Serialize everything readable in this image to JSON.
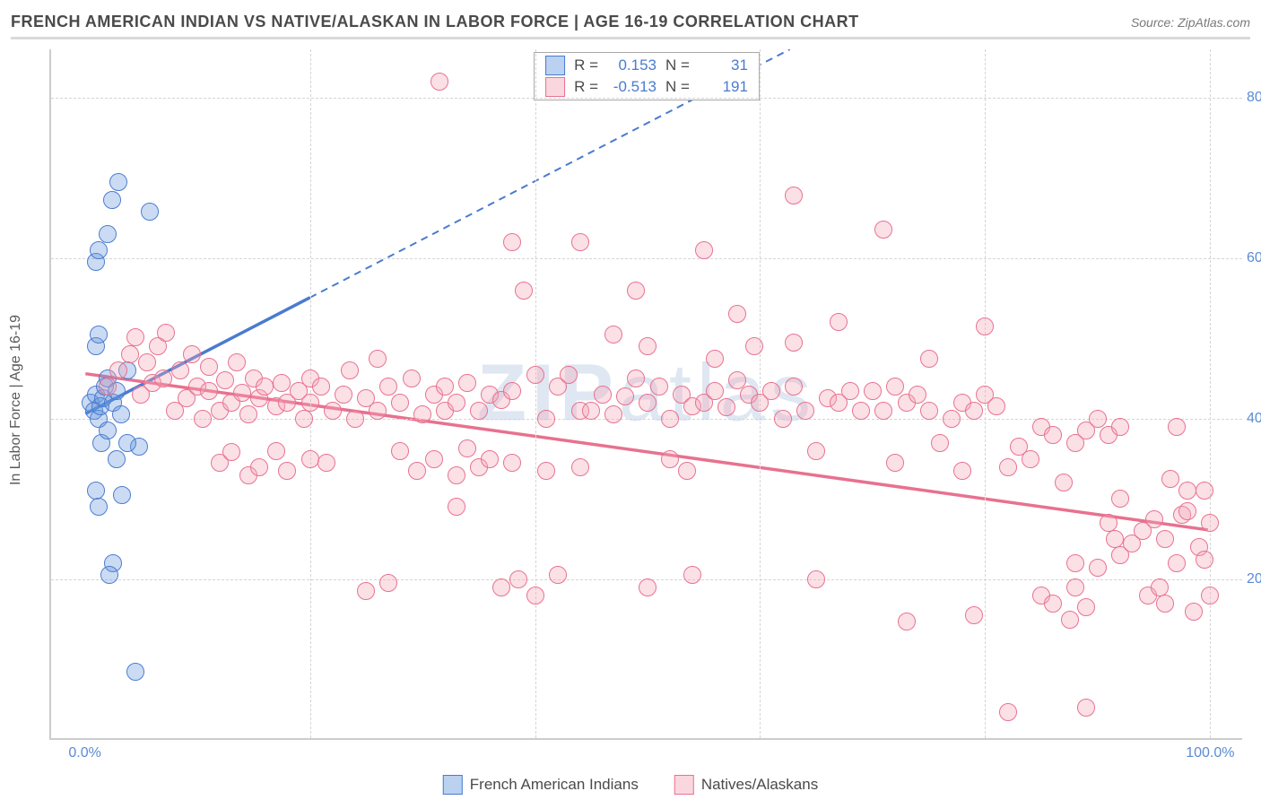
{
  "title": "FRENCH AMERICAN INDIAN VS NATIVE/ALASKAN IN LABOR FORCE | AGE 16-19 CORRELATION CHART",
  "source_label": "Source: ZipAtlas.com",
  "y_axis_title": "In Labor Force | Age 16-19",
  "watermark": {
    "bold": "ZIP",
    "rest": "atlas"
  },
  "chart": {
    "type": "scatter",
    "background_color": "#ffffff",
    "grid_color": "#d5d5d5",
    "axis_color": "#cccccc",
    "tick_label_color": "#5b8bd4",
    "tick_fontsize": 16,
    "title_fontsize": 18,
    "xlim": [
      -3,
      103
    ],
    "ylim": [
      0,
      86
    ],
    "x_ticks": [
      0,
      20,
      40,
      60,
      80,
      100
    ],
    "x_tick_labels_shown": {
      "0": "0.0%",
      "100": "100.0%"
    },
    "y_ticks": [
      20,
      40,
      60,
      80
    ],
    "y_tick_format": "{v}.0%",
    "marker_radius": 10,
    "marker_stroke_width": 1.5,
    "marker_fill_opacity": 0.35
  },
  "series": [
    {
      "id": "french_american_indians",
      "label": "French American Indians",
      "color": "#6699dd",
      "stroke": "#4a7bd0",
      "R": "0.153",
      "N": "31",
      "trend": {
        "x1": 0,
        "y1": 40.5,
        "x2": 20,
        "y2": 55,
        "x2_ext": 100,
        "y2_ext": 113,
        "solid_until_x": 20
      },
      "points": [
        [
          0.5,
          42
        ],
        [
          0.8,
          41
        ],
        [
          1.0,
          43
        ],
        [
          1.2,
          40
        ],
        [
          1.4,
          41.5
        ],
        [
          1.6,
          42.5
        ],
        [
          1.8,
          44
        ],
        [
          2,
          45
        ],
        [
          1,
          49
        ],
        [
          1.2,
          50.5
        ],
        [
          2.5,
          42
        ],
        [
          2.8,
          43.5
        ],
        [
          3.2,
          40.5
        ],
        [
          3.8,
          46
        ],
        [
          1.5,
          37
        ],
        [
          2,
          38.5
        ],
        [
          2.8,
          35
        ],
        [
          1,
          31
        ],
        [
          1.2,
          29
        ],
        [
          3.3,
          30.5
        ],
        [
          2.5,
          22
        ],
        [
          2.2,
          20.5
        ],
        [
          4.5,
          8.5
        ],
        [
          1,
          59.5
        ],
        [
          1.2,
          61
        ],
        [
          2,
          63
        ],
        [
          2.4,
          67.2
        ],
        [
          3,
          69.5
        ],
        [
          5.8,
          65.8
        ],
        [
          4.8,
          36.5
        ],
        [
          3.8,
          37
        ]
      ]
    },
    {
      "id": "natives_alaskans",
      "label": "Natives/Alaskans",
      "color": "#f4a6b8",
      "stroke": "#e8718f",
      "R": "-0.513",
      "N": "191",
      "trend": {
        "x1": 0,
        "y1": 45.5,
        "x2": 100,
        "y2": 26,
        "solid_until_x": 100
      },
      "points": [
        [
          2,
          44
        ],
        [
          3,
          46
        ],
        [
          4,
          48
        ],
        [
          4.5,
          50.2
        ],
        [
          5,
          43
        ],
        [
          5.5,
          47
        ],
        [
          6,
          44.5
        ],
        [
          6.5,
          49
        ],
        [
          7,
          45
        ],
        [
          7.2,
          50.7
        ],
        [
          8,
          41
        ],
        [
          8.5,
          46
        ],
        [
          9,
          42.5
        ],
        [
          9.5,
          48
        ],
        [
          10,
          44
        ],
        [
          10.5,
          40
        ],
        [
          11,
          43.5
        ],
        [
          12,
          41
        ],
        [
          12.5,
          44.8
        ],
        [
          13,
          42
        ],
        [
          13.5,
          47
        ],
        [
          14,
          43.2
        ],
        [
          14.5,
          40.5
        ],
        [
          15,
          45
        ],
        [
          15.5,
          42.5
        ],
        [
          16,
          44
        ],
        [
          17,
          41.5
        ],
        [
          17.5,
          44.5
        ],
        [
          18,
          42
        ],
        [
          19,
          43.5
        ],
        [
          19.5,
          40
        ],
        [
          20,
          45
        ],
        [
          12,
          34.5
        ],
        [
          13,
          35.8
        ],
        [
          14.5,
          33
        ],
        [
          15.5,
          34
        ],
        [
          17,
          36
        ],
        [
          18,
          33.5
        ],
        [
          20,
          35
        ],
        [
          21.5,
          34.5
        ],
        [
          11,
          46.5
        ],
        [
          20,
          42
        ],
        [
          21,
          44
        ],
        [
          22,
          41
        ],
        [
          23,
          43
        ],
        [
          23.5,
          46
        ],
        [
          24,
          40
        ],
        [
          25,
          42.5
        ],
        [
          26,
          41
        ],
        [
          27,
          44
        ],
        [
          26,
          47.5
        ],
        [
          28,
          42
        ],
        [
          29,
          45
        ],
        [
          30,
          40.5
        ],
        [
          31,
          43
        ],
        [
          32,
          41
        ],
        [
          28,
          36
        ],
        [
          29.5,
          33.5
        ],
        [
          31,
          35
        ],
        [
          33,
          33
        ],
        [
          34,
          36.3
        ],
        [
          35,
          34
        ],
        [
          25,
          18.5
        ],
        [
          27,
          19.5
        ],
        [
          31.5,
          82
        ],
        [
          33,
          29
        ],
        [
          32,
          44
        ],
        [
          33,
          42
        ],
        [
          34,
          44.5
        ],
        [
          35,
          41
        ],
        [
          36,
          43
        ],
        [
          37,
          42.3
        ],
        [
          38,
          43.5
        ],
        [
          38,
          62
        ],
        [
          39,
          56
        ],
        [
          40,
          45.5
        ],
        [
          41,
          40
        ],
        [
          42,
          44
        ],
        [
          43,
          45.5
        ],
        [
          44,
          41
        ],
        [
          37,
          19
        ],
        [
          38.5,
          20
        ],
        [
          40,
          18
        ],
        [
          42,
          20.5
        ],
        [
          36,
          35
        ],
        [
          38,
          34.5
        ],
        [
          41,
          33.5
        ],
        [
          44,
          34
        ],
        [
          45,
          41
        ],
        [
          46,
          43
        ],
        [
          47,
          40.5
        ],
        [
          48,
          42.8
        ],
        [
          49,
          45
        ],
        [
          47,
          50.5
        ],
        [
          49,
          56
        ],
        [
          50,
          49
        ],
        [
          44,
          62
        ],
        [
          50,
          42
        ],
        [
          51,
          44
        ],
        [
          52,
          40
        ],
        [
          53,
          43
        ],
        [
          54,
          41.5
        ],
        [
          52,
          35
        ],
        [
          53.5,
          33.5
        ],
        [
          50,
          19
        ],
        [
          54,
          20.5
        ],
        [
          55,
          42
        ],
        [
          56,
          43.5
        ],
        [
          57,
          41.4
        ],
        [
          58,
          44.8
        ],
        [
          59,
          43
        ],
        [
          56,
          47.5
        ],
        [
          60,
          42
        ],
        [
          58,
          53
        ],
        [
          59.5,
          49
        ],
        [
          61,
          43.5
        ],
        [
          62,
          40
        ],
        [
          63,
          44
        ],
        [
          63,
          49.5
        ],
        [
          64,
          41
        ],
        [
          65,
          36
        ],
        [
          66,
          42.5
        ],
        [
          67,
          42
        ],
        [
          68,
          43.5
        ],
        [
          69,
          41
        ],
        [
          67,
          52
        ],
        [
          70,
          43.5
        ],
        [
          71,
          41
        ],
        [
          72,
          44
        ],
        [
          73,
          42
        ],
        [
          74,
          43
        ],
        [
          63,
          67.8
        ],
        [
          55,
          61
        ],
        [
          75,
          41
        ],
        [
          75,
          47.5
        ],
        [
          76,
          37
        ],
        [
          77,
          40
        ],
        [
          78,
          42
        ],
        [
          79,
          41
        ],
        [
          80,
          43
        ],
        [
          81,
          41.5
        ],
        [
          82,
          34
        ],
        [
          83,
          36.5
        ],
        [
          84,
          35
        ],
        [
          71,
          63.5
        ],
        [
          80,
          51.5
        ],
        [
          85,
          39
        ],
        [
          86,
          38
        ],
        [
          87,
          32
        ],
        [
          88,
          37
        ],
        [
          89,
          38.5
        ],
        [
          85,
          18
        ],
        [
          86,
          17
        ],
        [
          88,
          19
        ],
        [
          87.5,
          15
        ],
        [
          89,
          16.5
        ],
        [
          90,
          40
        ],
        [
          91,
          27
        ],
        [
          91.5,
          25
        ],
        [
          92,
          30
        ],
        [
          92,
          23
        ],
        [
          93,
          24.5
        ],
        [
          94,
          26
        ],
        [
          94.5,
          18
        ],
        [
          95,
          27.5
        ],
        [
          95.5,
          19
        ],
        [
          96,
          17
        ],
        [
          96,
          25
        ],
        [
          96.5,
          32.5
        ],
        [
          97,
          22
        ],
        [
          97,
          39
        ],
        [
          97.5,
          28
        ],
        [
          98,
          31
        ],
        [
          98,
          28.5
        ],
        [
          98.5,
          16
        ],
        [
          99,
          24
        ],
        [
          99.5,
          22.5
        ],
        [
          99.5,
          31
        ],
        [
          100,
          27
        ],
        [
          100,
          18
        ],
        [
          82,
          3.5
        ],
        [
          89,
          4
        ],
        [
          88,
          22
        ],
        [
          90,
          21.5
        ],
        [
          91,
          38
        ],
        [
          92,
          39
        ],
        [
          79,
          15.5
        ],
        [
          73,
          14.7
        ],
        [
          78,
          33.5
        ],
        [
          72,
          34.5
        ],
        [
          65,
          20
        ]
      ]
    }
  ],
  "bottom_legend": [
    {
      "label": "French American Indians",
      "series": 0
    },
    {
      "label": "Natives/Alaskans",
      "series": 1
    }
  ]
}
